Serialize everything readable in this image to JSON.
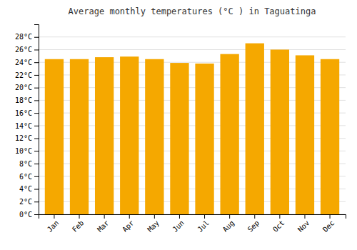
{
  "chart_data": {
    "type": "bar",
    "title": "Average monthly temperatures (°C ) in Taguatinga",
    "categories": [
      "Jan",
      "Feb",
      "Mar",
      "Apr",
      "May",
      "Jun",
      "Jul",
      "Aug",
      "Sep",
      "Oct",
      "Nov",
      "Dec"
    ],
    "values": [
      24.5,
      24.5,
      24.8,
      24.9,
      24.5,
      23.9,
      23.8,
      25.3,
      27.0,
      26.0,
      25.1,
      24.5
    ],
    "color": "#F5A800",
    "ylim": [
      0,
      30
    ],
    "yticks": [
      {
        "value": 0,
        "label": "0°C"
      },
      {
        "value": 2,
        "label": "2°C"
      },
      {
        "value": 4,
        "label": "4°C"
      },
      {
        "value": 6,
        "label": "6°C"
      },
      {
        "value": 8,
        "label": "8°C"
      },
      {
        "value": 10,
        "label": "10°C"
      },
      {
        "value": 12,
        "label": "12°C"
      },
      {
        "value": 14,
        "label": "14°C"
      },
      {
        "value": 16,
        "label": "16°C"
      },
      {
        "value": 18,
        "label": "18°C"
      },
      {
        "value": 20,
        "label": "20°C"
      },
      {
        "value": 22,
        "label": "22°C"
      },
      {
        "value": 24,
        "label": "24°C"
      },
      {
        "value": 26,
        "label": "26°C"
      },
      {
        "value": 28,
        "label": "28°C"
      }
    ],
    "grid": true
  }
}
